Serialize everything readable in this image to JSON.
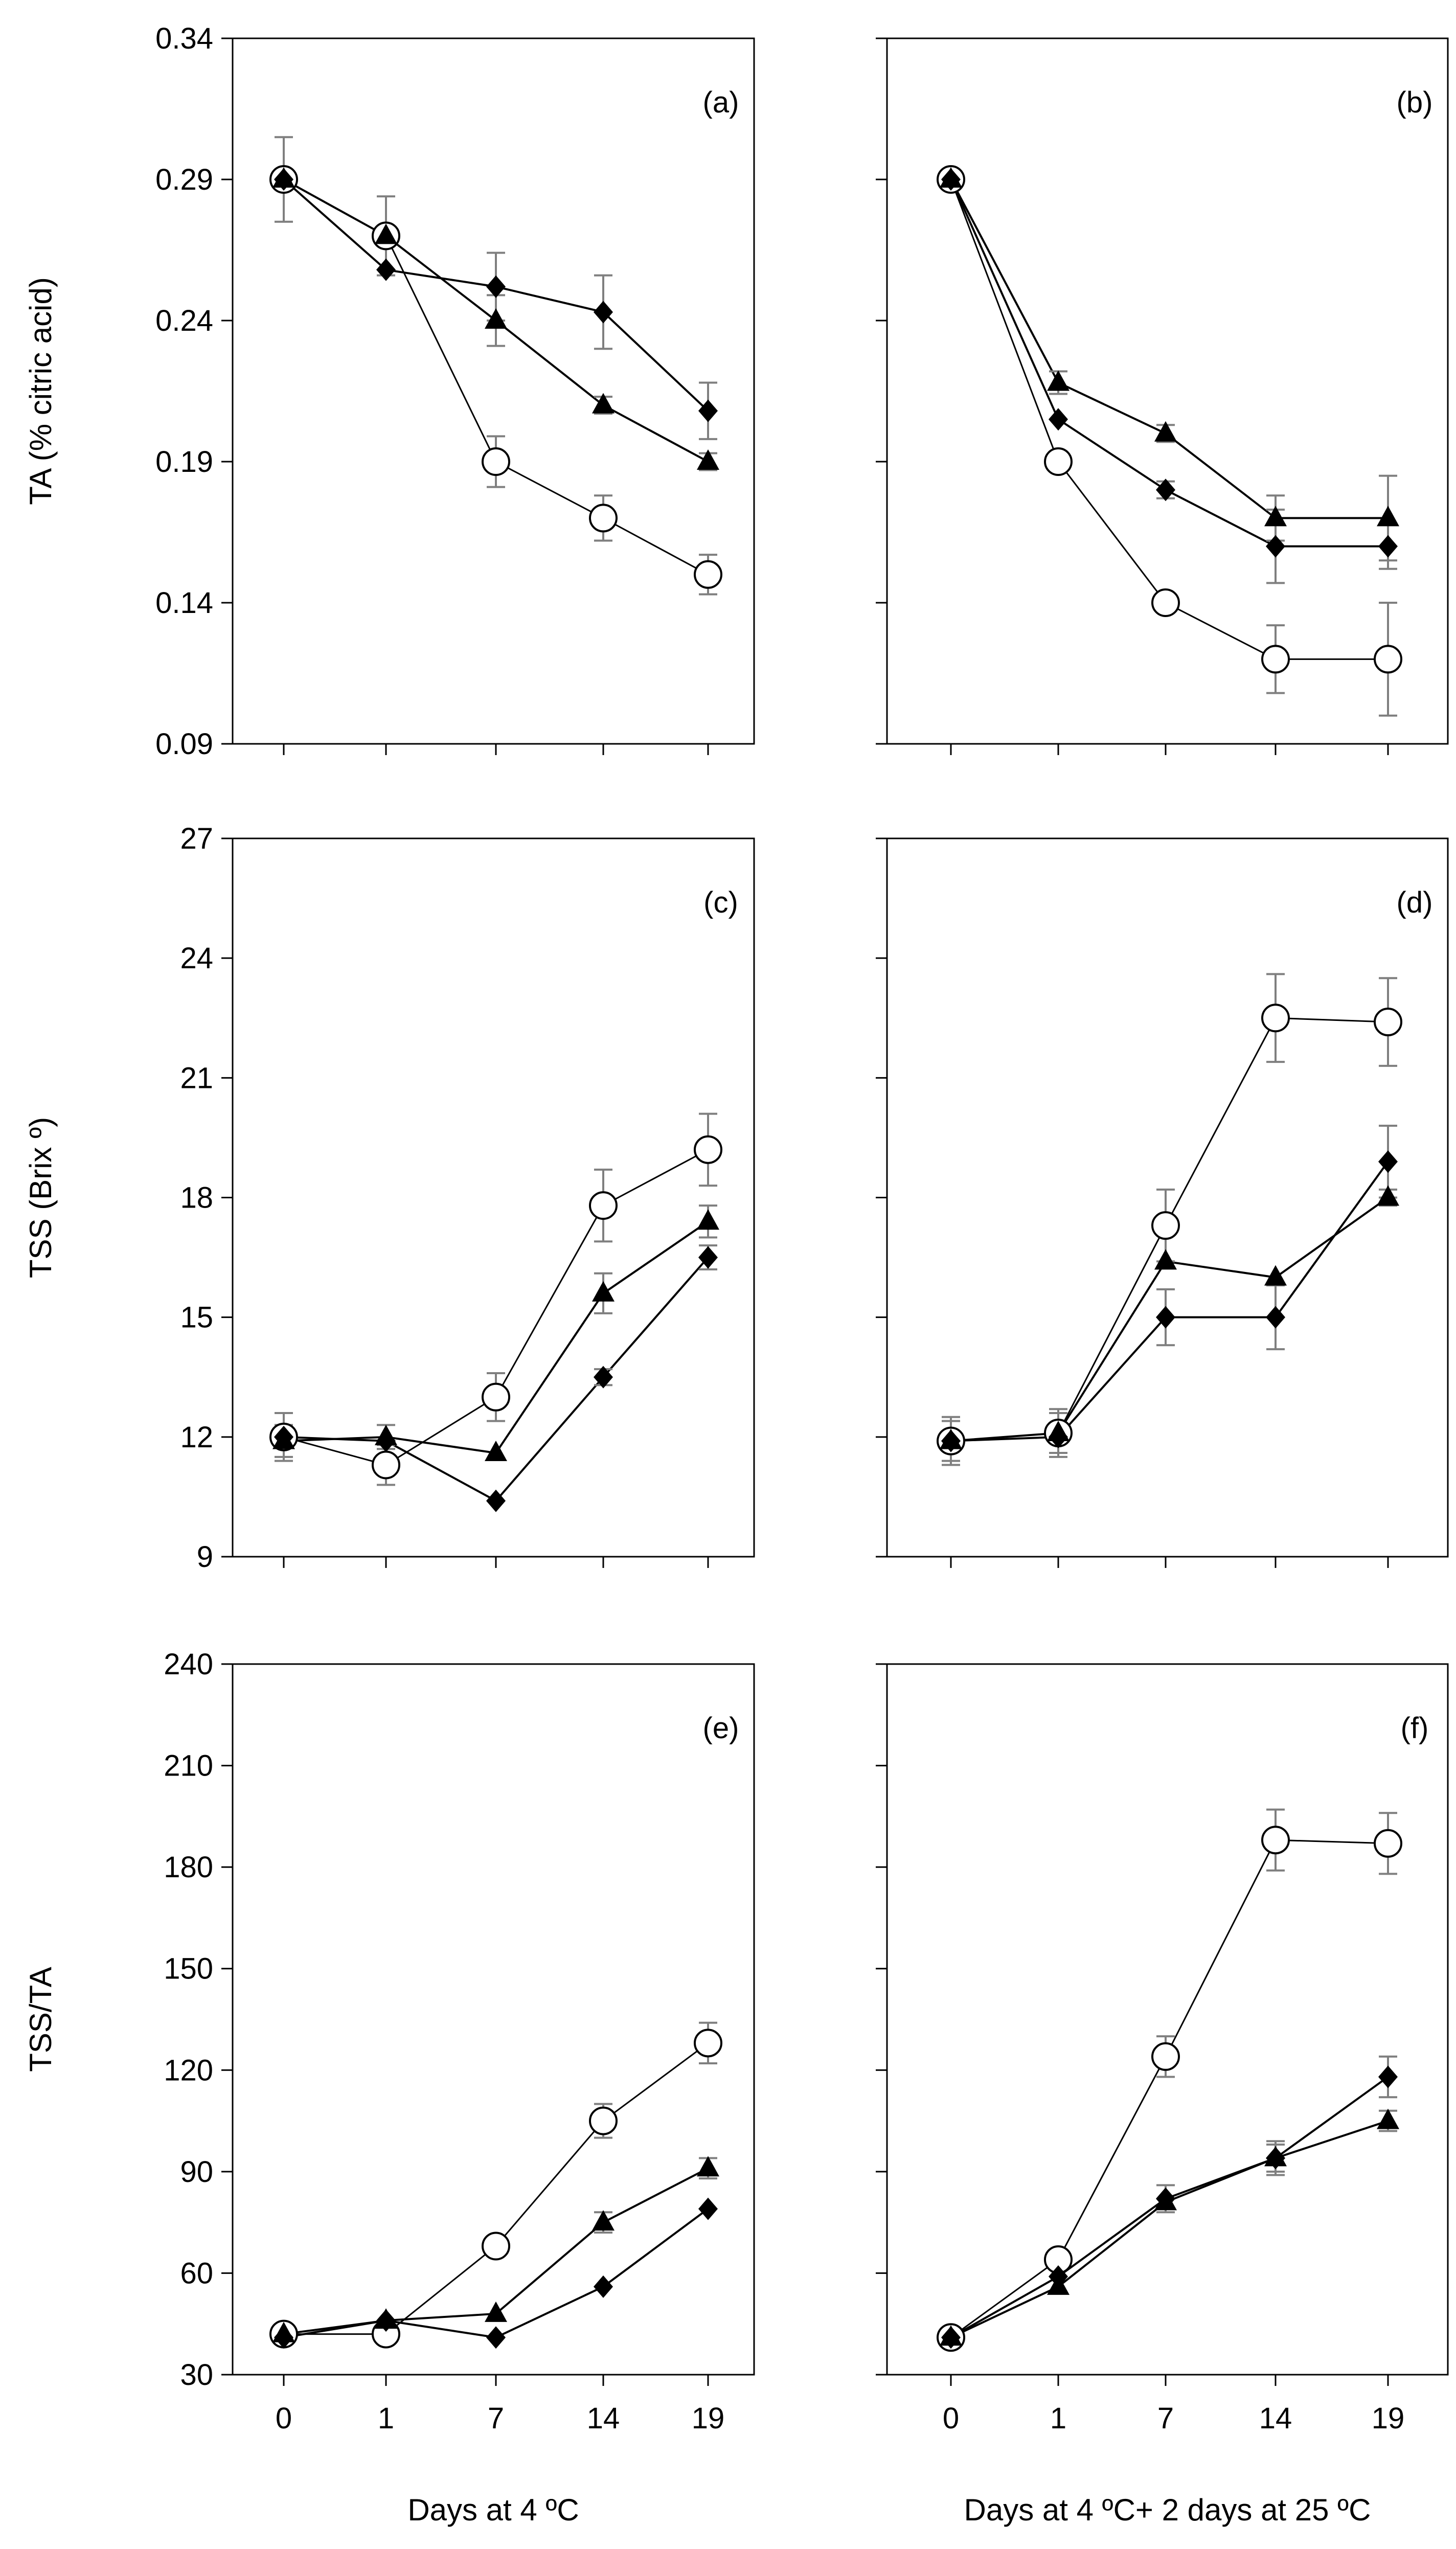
{
  "chart_data": [
    {
      "type": "line",
      "panel_label": "(a)",
      "ylabel": "TA (% citric acid)",
      "ylim": [
        0.09,
        0.34
      ],
      "yticks": [
        "0.09",
        "0.14",
        "0.19",
        "0.24",
        "0.29",
        "0.34"
      ],
      "categories": [
        "0",
        "1",
        "7",
        "14",
        "19"
      ],
      "series": [
        {
          "name": "circle",
          "marker": "open-circle",
          "values": [
            0.29,
            0.27,
            0.19,
            0.17,
            0.15
          ],
          "errors": [
            0.015,
            0.014,
            0.009,
            0.008,
            0.007
          ]
        },
        {
          "name": "diamond",
          "marker": "filled-diamond",
          "values": [
            0.29,
            0.258,
            0.252,
            0.243,
            0.208
          ],
          "errors": [
            0.0,
            0.0,
            0.012,
            0.013,
            0.01
          ]
        },
        {
          "name": "triangle",
          "marker": "filled-triangle",
          "values": [
            0.29,
            0.27,
            0.24,
            0.21,
            0.19
          ],
          "errors": [
            0.0,
            0.0,
            0.009,
            0.003,
            0.003
          ]
        }
      ]
    },
    {
      "type": "line",
      "panel_label": "(b)",
      "ylabel": "",
      "ylim": [
        0.09,
        0.34
      ],
      "yticks": [],
      "categories": [
        "0",
        "1",
        "7",
        "14",
        "19"
      ],
      "series": [
        {
          "name": "circle",
          "marker": "open-circle",
          "values": [
            0.29,
            0.19,
            0.14,
            0.12,
            0.12
          ],
          "errors": [
            0.0,
            0.0,
            0.0,
            0.012,
            0.02
          ]
        },
        {
          "name": "diamond",
          "marker": "filled-diamond",
          "values": [
            0.29,
            0.205,
            0.18,
            0.16,
            0.16
          ],
          "errors": [
            0.0,
            0.0,
            0.003,
            0.013,
            0.008
          ]
        },
        {
          "name": "triangle",
          "marker": "filled-triangle",
          "values": [
            0.29,
            0.218,
            0.2,
            0.17,
            0.17
          ],
          "errors": [
            0.0,
            0.004,
            0.003,
            0.008,
            0.015
          ]
        }
      ]
    },
    {
      "type": "line",
      "panel_label": "(c)",
      "ylabel": "TSS (Brix º)",
      "ylim": [
        9,
        27
      ],
      "yticks": [
        "9",
        "12",
        "15",
        "18",
        "21",
        "24",
        "27"
      ],
      "categories": [
        "0",
        "1",
        "7",
        "14",
        "19"
      ],
      "series": [
        {
          "name": "circle",
          "marker": "open-circle",
          "values": [
            12.0,
            11.3,
            13.0,
            17.8,
            19.2
          ],
          "errors": [
            0.6,
            0.5,
            0.6,
            0.9,
            0.9
          ]
        },
        {
          "name": "diamond",
          "marker": "filled-diamond",
          "values": [
            12.0,
            11.9,
            10.4,
            13.5,
            16.5
          ],
          "errors": [
            0.0,
            0.0,
            0.0,
            0.2,
            0.3
          ]
        },
        {
          "name": "triangle",
          "marker": "filled-triangle",
          "values": [
            11.9,
            12.0,
            11.6,
            15.6,
            17.4
          ],
          "errors": [
            0.4,
            0.3,
            0.0,
            0.5,
            0.4
          ]
        }
      ]
    },
    {
      "type": "line",
      "panel_label": "(d)",
      "ylabel": "",
      "ylim": [
        9,
        27
      ],
      "yticks": [],
      "categories": [
        "0",
        "1",
        "7",
        "14",
        "19"
      ],
      "series": [
        {
          "name": "circle",
          "marker": "open-circle",
          "values": [
            11.9,
            12.1,
            17.3,
            22.5,
            22.4
          ],
          "errors": [
            0.6,
            0.6,
            0.9,
            1.1,
            1.1
          ]
        },
        {
          "name": "diamond",
          "marker": "filled-diamond",
          "values": [
            11.9,
            12.0,
            15.0,
            15.0,
            18.9
          ],
          "errors": [
            0.0,
            0.0,
            0.7,
            0.8,
            0.9
          ]
        },
        {
          "name": "triangle",
          "marker": "filled-triangle",
          "values": [
            11.9,
            12.1,
            16.4,
            16.0,
            18.0
          ],
          "errors": [
            0.5,
            0.5,
            0.0,
            0.0,
            0.2
          ]
        }
      ]
    },
    {
      "type": "line",
      "panel_label": "(e)",
      "ylabel": "TSS/TA",
      "ylim": [
        30,
        240
      ],
      "yticks": [
        "30",
        "60",
        "90",
        "120",
        "150",
        "180",
        "210",
        "240"
      ],
      "categories": [
        "0",
        "1",
        "7",
        "14",
        "19"
      ],
      "xlabel": "Days at 4 ºC",
      "series": [
        {
          "name": "circle",
          "marker": "open-circle",
          "values": [
            42,
            42,
            68,
            105,
            128
          ],
          "errors": [
            0.0,
            0.0,
            0.0,
            5,
            6
          ]
        },
        {
          "name": "diamond",
          "marker": "filled-diamond",
          "values": [
            41,
            46,
            41,
            56,
            79
          ],
          "errors": [
            0.0,
            0.0,
            0.0,
            0.0,
            0.0
          ]
        },
        {
          "name": "triangle",
          "marker": "filled-triangle",
          "values": [
            42,
            46,
            48,
            75,
            91
          ],
          "errors": [
            0.0,
            0.0,
            0.0,
            3,
            3
          ]
        }
      ]
    },
    {
      "type": "line",
      "panel_label": "(f)",
      "ylabel": "",
      "ylim": [
        30,
        240
      ],
      "yticks": [],
      "categories": [
        "0",
        "1",
        "7",
        "14",
        "19"
      ],
      "xlabel": "Days at 4 ºC+ 2 days at 25 ºC",
      "series": [
        {
          "name": "circle",
          "marker": "open-circle",
          "values": [
            41,
            64,
            124,
            188,
            187
          ],
          "errors": [
            0.0,
            0.0,
            6,
            9,
            9
          ]
        },
        {
          "name": "diamond",
          "marker": "filled-diamond",
          "values": [
            41,
            59,
            82,
            94,
            118
          ],
          "errors": [
            0.0,
            0.0,
            4,
            5,
            6
          ]
        },
        {
          "name": "triangle",
          "marker": "filled-triangle",
          "values": [
            41,
            56,
            81,
            94,
            105
          ],
          "errors": [
            0.0,
            0.0,
            0.0,
            4,
            3
          ]
        }
      ]
    }
  ]
}
